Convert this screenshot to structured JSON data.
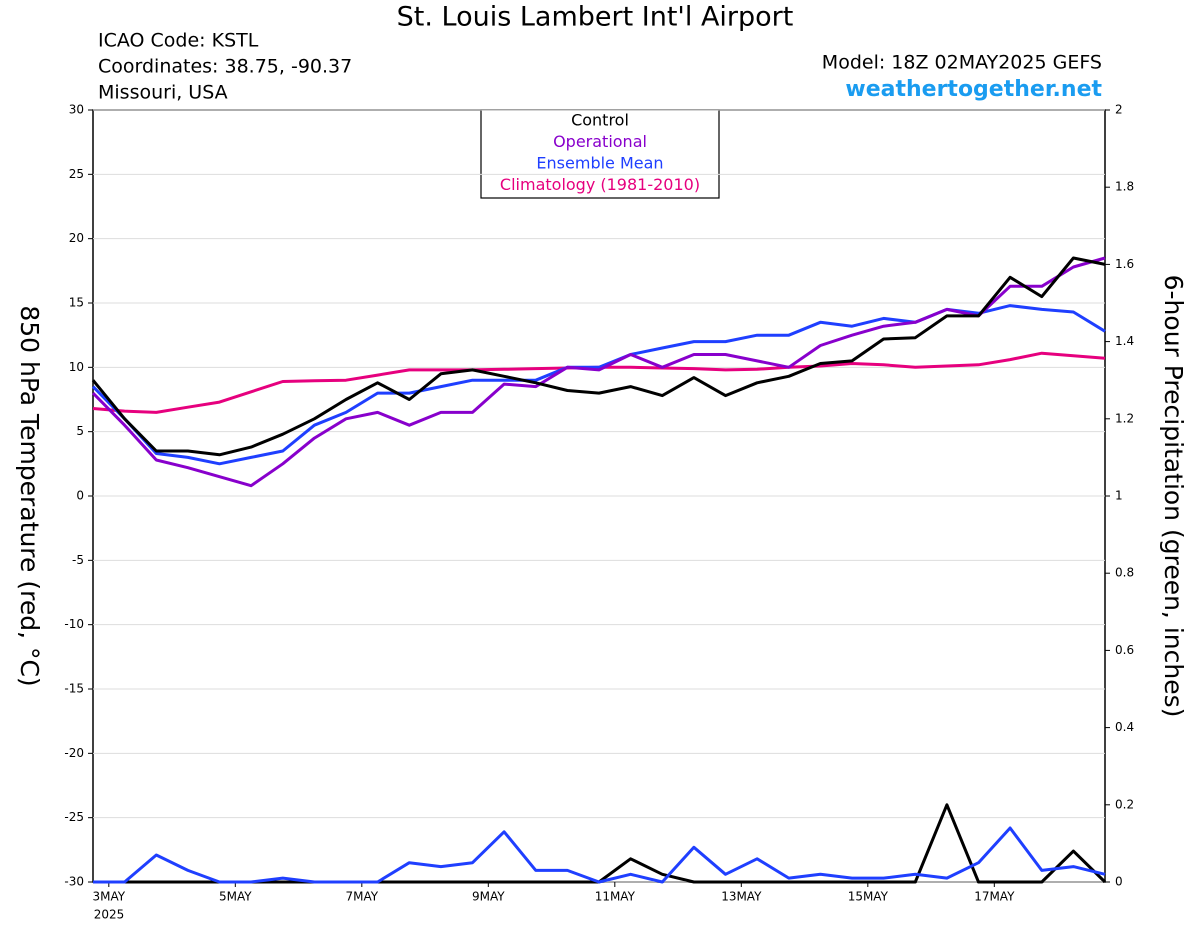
{
  "chart_data": {
    "type": "line",
    "title": "St. Louis Lambert Int'l Airport",
    "info_lines": [
      "ICAO Code: KSTL",
      "Coordinates: 38.75, -90.37",
      "Missouri, USA"
    ],
    "model": "Model: 18Z 02MAY2025 GEFS",
    "source": "weathertogether.net",
    "y_label": "850 hPa Temperature (red, °C)",
    "y2_label": "6-hour Precipitation (green, inches)",
    "x_year_label": "2025",
    "x": [
      -0.25,
      0.25,
      0.75,
      1.25,
      1.75,
      2.25,
      2.75,
      3.25,
      3.75,
      4.25,
      4.75,
      5.25,
      5.75,
      6.25,
      6.75,
      7.25,
      7.75,
      8.25,
      8.75,
      9.25,
      9.75,
      10.25,
      10.75,
      11.25,
      11.75,
      12.25,
      12.75,
      13.25,
      13.75,
      14.25,
      14.75,
      15.25,
      15.75
    ],
    "xlim": [
      -0.25,
      15.75
    ],
    "xticks": [
      {
        "value": 0,
        "label": "3MAY"
      },
      {
        "value": 2,
        "label": "5MAY"
      },
      {
        "value": 4,
        "label": "7MAY"
      },
      {
        "value": 6,
        "label": "9MAY"
      },
      {
        "value": 8,
        "label": "11MAY"
      },
      {
        "value": 10,
        "label": "13MAY"
      },
      {
        "value": 12,
        "label": "15MAY"
      },
      {
        "value": 14,
        "label": "17MAY"
      }
    ],
    "ylim": [
      -30,
      30
    ],
    "yticks": [
      -30,
      -25,
      -20,
      -15,
      -10,
      -5,
      0,
      5,
      10,
      15,
      20,
      25,
      30
    ],
    "y2lim": [
      0,
      2
    ],
    "y2ticks": [
      0,
      0.2,
      0.4,
      0.6,
      0.8,
      1,
      1.2,
      1.4,
      1.6,
      1.8,
      2
    ],
    "grid": true,
    "series": [
      {
        "name": "Control",
        "color": "#000000",
        "values": [
          9,
          6,
          3.5,
          3.5,
          3.2,
          3.8,
          4.8,
          6,
          7.5,
          8.8,
          7.5,
          9.5,
          9.8,
          9.3,
          8.8,
          8.2,
          8,
          8.5,
          7.8,
          9.2,
          7.8,
          8.8,
          9.3,
          10.3,
          10.5,
          12.2,
          12.3,
          14,
          14,
          17,
          15.5,
          18.5,
          18
        ]
      },
      {
        "name": "Operational",
        "color": "#8800cc",
        "values": [
          8,
          5.5,
          2.8,
          2.2,
          1.5,
          0.8,
          2.5,
          4.5,
          6,
          6.5,
          5.5,
          6.5,
          6.5,
          8.7,
          8.5,
          10,
          9.8,
          11,
          10,
          11,
          11,
          10.5,
          10,
          11.7,
          12.5,
          13.2,
          13.5,
          14.5,
          14,
          16.3,
          16.3,
          17.8,
          18.5
        ]
      },
      {
        "name": "Ensemble Mean",
        "color": "#1f3fff",
        "values": [
          8.5,
          6,
          3.3,
          3,
          2.5,
          3,
          3.5,
          5.5,
          6.5,
          8,
          8,
          8.5,
          9,
          9,
          9,
          10,
          10,
          11,
          11.5,
          12,
          12,
          12.5,
          12.5,
          13.5,
          13.2,
          13.8,
          13.5,
          14.5,
          14.2,
          14.8,
          14.5,
          14.3,
          12.8
        ]
      },
      {
        "name": "Climatology (1981-2010)",
        "color": "#e6007e",
        "values": [
          6.8,
          6.6,
          6.5,
          6.9,
          7.3,
          8.1,
          8.9,
          8.95,
          9,
          9.4,
          9.8,
          9.8,
          9.8,
          9.85,
          9.9,
          9.95,
          10,
          10,
          9.95,
          9.9,
          9.8,
          9.85,
          10,
          10.1,
          10.3,
          10.2,
          10,
          10.1,
          10.2,
          10.6,
          11.1,
          10.9,
          10.7
        ]
      },
      {
        "color": "#000000",
        "axis": "y2",
        "values": [
          0,
          0,
          0,
          0,
          0,
          0,
          0,
          0,
          0,
          0,
          0,
          0,
          0,
          0,
          0,
          0,
          0,
          0.06,
          0.02,
          0,
          0,
          0,
          0,
          0,
          0,
          0,
          0,
          0.2,
          0,
          0,
          0,
          0.08,
          0
        ]
      },
      {
        "color": "#1f3fff",
        "axis": "y2",
        "values": [
          0,
          0,
          0.07,
          0.03,
          0,
          0,
          0.01,
          0,
          0,
          0,
          0.05,
          0.04,
          0.05,
          0.13,
          0.03,
          0.03,
          0,
          0.02,
          0,
          0.09,
          0.02,
          0.06,
          0.01,
          0.02,
          0.01,
          0.01,
          0.02,
          0.01,
          0.05,
          0.14,
          0.03,
          0.04,
          0.02
        ]
      }
    ]
  }
}
